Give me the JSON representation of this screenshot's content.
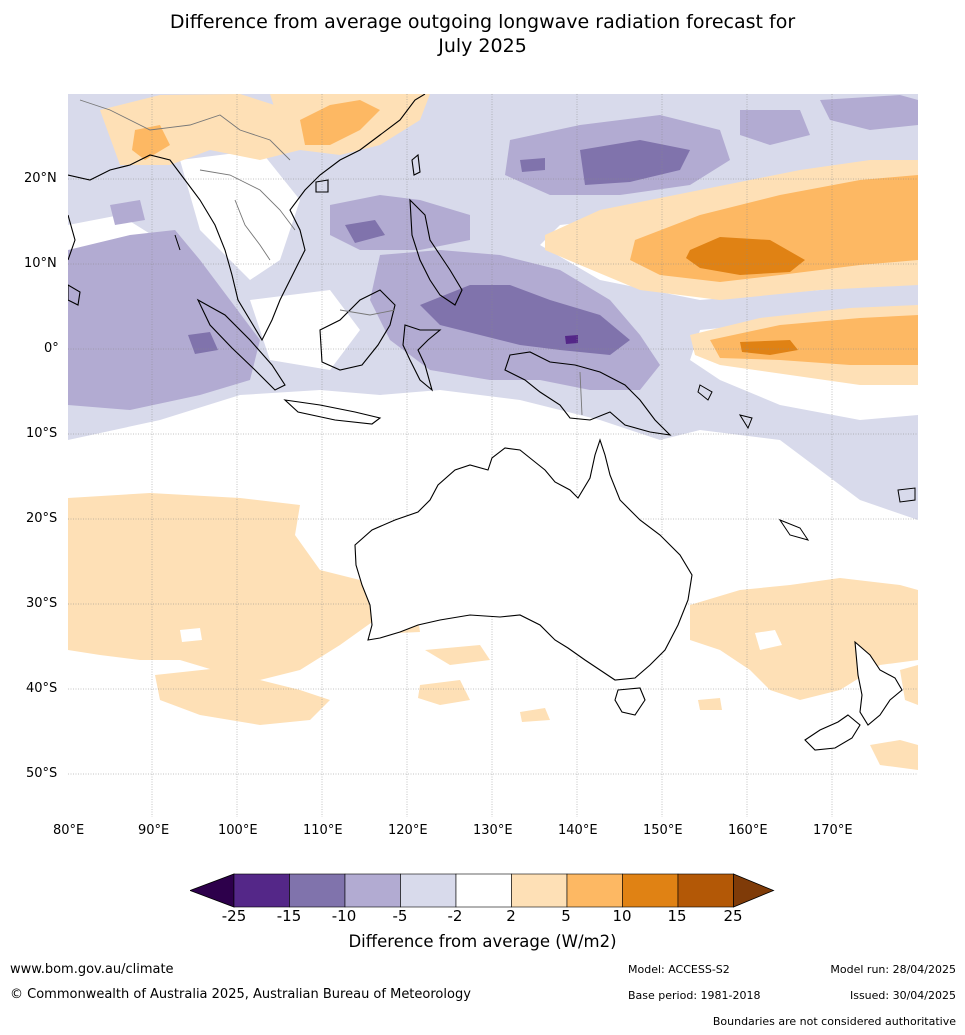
{
  "title_line1": "Difference from average outgoing longwave radiation forecast for",
  "title_line2": "July 2025",
  "axes": {
    "lat_labels": [
      "20°N",
      "10°N",
      "0°",
      "10°S",
      "20°S",
      "30°S",
      "40°S",
      "50°S"
    ],
    "lon_labels": [
      "80°E",
      "90°E",
      "100°E",
      "110°E",
      "120°E",
      "130°E",
      "140°E",
      "150°E",
      "160°E",
      "170°E"
    ],
    "lon_range": [
      80,
      180
    ],
    "lat_range": [
      -55,
      30
    ]
  },
  "colorbar": {
    "ticks": [
      "-25",
      "-15",
      "-10",
      "-5",
      "-2",
      "2",
      "5",
      "10",
      "15",
      "25"
    ],
    "colors": [
      "#2d004b",
      "#542788",
      "#8073ac",
      "#b2abd2",
      "#d8daeb",
      "#ffffff",
      "#fee0b6",
      "#fdb863",
      "#e08214",
      "#b35806",
      "#7f3b08"
    ],
    "label": "Difference from average (W/m2)"
  },
  "footer": {
    "url": "www.bom.gov.au/climate",
    "copyright": "© Commonwealth of Australia 2025, Australian Bureau of Meteorology",
    "model": "Model: ACCESS-S2",
    "base_period": "Base period: 1981-2018",
    "model_run": "Model run: 28/04/2025",
    "issued": "Issued: 30/04/2025",
    "disclaimer": "Boundaries are not considered authoritative"
  }
}
